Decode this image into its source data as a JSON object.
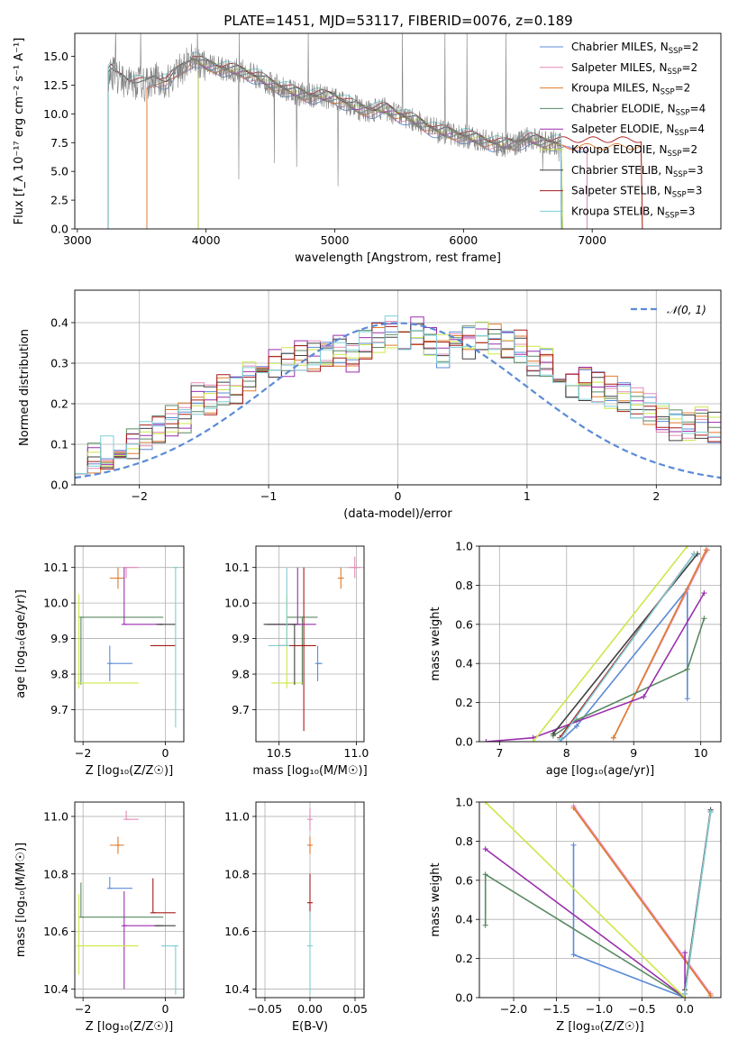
{
  "title": "PLATE=1451, MJD=53117, FIBERID=0076, z=0.189",
  "chart_data": [
    {
      "type": "line",
      "id": "spectrum",
      "xlabel": "wavelength [Angstrom, rest frame]",
      "xlim": [
        2980,
        8000
      ],
      "ylim": [
        0,
        17
      ],
      "xticks": [
        3000,
        4000,
        5000,
        6000,
        7000
      ],
      "yticks": [
        0.0,
        2.5,
        5.0,
        7.5,
        10.0,
        12.5,
        15.0
      ],
      "observed_color": "#808080",
      "continuum": {
        "x": [
          3240,
          3260,
          3300,
          3400,
          3540,
          3600,
          3700,
          3800,
          3900,
          4000,
          4100,
          4200,
          4300,
          4400,
          4500,
          4600,
          4700,
          4800,
          4900,
          5000,
          5100,
          5200,
          5300,
          5400,
          5500,
          5600,
          5700,
          5800,
          5900,
          6000,
          6100,
          6200,
          6300,
          6400,
          6500,
          6600,
          6700,
          6760
        ],
        "y": [
          13.5,
          13.8,
          13.2,
          12.8,
          12.5,
          13.0,
          12.8,
          13.8,
          14.8,
          14.2,
          14.0,
          13.8,
          13.6,
          13.2,
          12.6,
          12.2,
          11.8,
          11.6,
          11.5,
          11.4,
          10.9,
          10.4,
          10.3,
          10.4,
          9.9,
          9.5,
          9.0,
          8.5,
          8.3,
          8.1,
          7.8,
          7.5,
          7.3,
          7.4,
          7.8,
          7.6,
          7.5,
          7.4
        ]
      },
      "series": [
        {
          "name": "Chabrier MILES",
          "nssp": 2,
          "color": "#5b8bd6"
        },
        {
          "name": "Salpeter MILES",
          "nssp": 2,
          "color": "#e38bb8"
        },
        {
          "name": "Kroupa MILES",
          "nssp": 2,
          "color": "#e07b2c"
        },
        {
          "name": "Chabrier ELODIE",
          "nssp": 4,
          "color": "#5a8a63"
        },
        {
          "name": "Salpeter ELODIE",
          "nssp": 4,
          "color": "#9b2fae"
        },
        {
          "name": "Kroupa ELODIE",
          "nssp": 2,
          "color": "#cce84a"
        },
        {
          "name": "Chabrier STELIB",
          "nssp": 3,
          "color": "#404040"
        },
        {
          "name": "Salpeter STELIB",
          "nssp": 3,
          "color": "#a61b1b"
        },
        {
          "name": "Kroupa STELIB",
          "nssp": 3,
          "color": "#7ecfd6"
        }
      ],
      "model_ranges": [
        [
          3540,
          6960
        ],
        [
          3540,
          6960
        ],
        [
          3540,
          7390
        ],
        [
          3940,
          6770
        ],
        [
          3940,
          6770
        ],
        [
          3940,
          6770
        ],
        [
          3240,
          6760
        ],
        [
          3240,
          7390
        ],
        [
          3240,
          6760
        ]
      ],
      "legend_suffix": "N",
      "legend_sub": "SSP"
    },
    {
      "type": "line",
      "id": "residuals",
      "xlabel": "(data-model)/error",
      "ylabel": "Normed distribution",
      "xlim": [
        -2.5,
        2.5
      ],
      "ylim": [
        0,
        0.48
      ],
      "xticks": [
        -2,
        -1,
        0,
        1,
        2
      ],
      "yticks": [
        0.0,
        0.1,
        0.2,
        0.3,
        0.4
      ],
      "normal_label": "𝒩(0, 1)",
      "normal_color": "#5b8bd6",
      "hist_bins": {
        "start": -2.5,
        "width": 0.1
      },
      "envelope": [
        0.07,
        0.07,
        0.08,
        0.1,
        0.1,
        0.12,
        0.13,
        0.16,
        0.17,
        0.21,
        0.21,
        0.23,
        0.23,
        0.27,
        0.3,
        0.3,
        0.3,
        0.32,
        0.32,
        0.33,
        0.33,
        0.32,
        0.35,
        0.36,
        0.38,
        0.36,
        0.38,
        0.36,
        0.33,
        0.35,
        0.35,
        0.36,
        0.36,
        0.35,
        0.34,
        0.31,
        0.3,
        0.27,
        0.25,
        0.25,
        0.24,
        0.23,
        0.21,
        0.2,
        0.19,
        0.17,
        0.15,
        0.15,
        0.15,
        0.14,
        0.13,
        0.1,
        0.1,
        0.08,
        0.08,
        0.07,
        0.06,
        0.05,
        0.05,
        0.04,
        0.04,
        0.03,
        0.03,
        0.02,
        0.02,
        0.02
      ]
    },
    {
      "type": "scatter",
      "id": "age-vs-Z",
      "xlabel": "Z [log₁₀(Z/Z☉)]",
      "ylabel": "age  [log₁₀(age/yr)]",
      "xlim": [
        -2.2,
        0.45
      ],
      "ylim": [
        9.61,
        10.16
      ],
      "xticks": [
        -2,
        0
      ],
      "yticks": [
        9.7,
        9.8,
        9.9,
        10.0,
        10.1
      ],
      "points": [
        {
          "x": -1.35,
          "y": 9.83,
          "xerr": [
            0.0,
            0.55
          ],
          "yerr": [
            0.05,
            0.05
          ],
          "color": "#5b8bd6"
        },
        {
          "x": -0.95,
          "y": 10.1,
          "xerr": [
            0.0,
            0.3
          ],
          "yerr": [
            0.03,
            0.0
          ],
          "color": "#e38bb8"
        },
        {
          "x": -1.15,
          "y": 10.07,
          "xerr": [
            0.2,
            0.15
          ],
          "yerr": [
            0.03,
            0.03
          ],
          "color": "#e07b2c"
        },
        {
          "x": -2.05,
          "y": 9.96,
          "xerr": [
            0.0,
            2.0
          ],
          "yerr": [
            0.19,
            0.0
          ],
          "color": "#5a8a63"
        },
        {
          "x": -1.0,
          "y": 9.94,
          "xerr": [
            0.0,
            0.95
          ],
          "yerr": [
            0.0,
            0.16
          ],
          "color": "#9b2fae"
        },
        {
          "x": -2.1,
          "y": 9.775,
          "xerr": [
            0.0,
            1.45
          ],
          "yerr": [
            0.015,
            0.25
          ],
          "color": "#cce84a"
        },
        {
          "x": -0.15,
          "y": 9.94,
          "xerr": [
            0.0,
            0.4
          ],
          "yerr": [
            0.0,
            0.0
          ],
          "color": "#404040"
        },
        {
          "x": -0.3,
          "y": 9.88,
          "xerr": [
            0.0,
            0.55
          ],
          "yerr": [
            0.0,
            0.0
          ],
          "color": "#a61b1b"
        },
        {
          "x": 0.25,
          "y": 10.1,
          "xerr": [
            0.0,
            0.0
          ],
          "yerr": [
            0.45,
            0.0
          ],
          "color": "#7ecfd6"
        }
      ]
    },
    {
      "type": "scatter",
      "id": "age-vs-mass",
      "xlabel": "mass [log₁₀(M/M☉)]",
      "xlim": [
        10.35,
        11.05
      ],
      "ylim": [
        9.61,
        10.16
      ],
      "xticks": [
        10.5,
        11.0
      ],
      "yticks": [
        9.7,
        9.8,
        9.9,
        10.0,
        10.1
      ],
      "points": [
        {
          "x": 10.75,
          "y": 9.83,
          "xerr": [
            0.0,
            0.03
          ],
          "yerr": [
            0.05,
            0.05
          ],
          "color": "#5b8bd6"
        },
        {
          "x": 10.99,
          "y": 10.1,
          "xerr": [
            0.04,
            0.04
          ],
          "yerr": [
            0.03,
            0.03
          ],
          "color": "#e38bb8"
        },
        {
          "x": 10.9,
          "y": 10.07,
          "xerr": [
            0.02,
            0.02
          ],
          "yerr": [
            0.03,
            0.03
          ],
          "color": "#e07b2c"
        },
        {
          "x": 10.65,
          "y": 9.96,
          "xerr": [
            0.1,
            0.1
          ],
          "yerr": [
            0.19,
            0.0
          ],
          "color": "#5a8a63"
        },
        {
          "x": 10.62,
          "y": 9.94,
          "xerr": [
            0.2,
            0.12
          ],
          "yerr": [
            0.0,
            0.16
          ],
          "color": "#9b2fae"
        },
        {
          "x": 10.55,
          "y": 9.775,
          "xerr": [
            0.1,
            0.1
          ],
          "yerr": [
            0.015,
            0.25
          ],
          "color": "#cce84a"
        },
        {
          "x": 10.6,
          "y": 9.94,
          "xerr": [
            0.2,
            0.0
          ],
          "yerr": [
            0.17,
            0.0
          ],
          "color": "#404040"
        },
        {
          "x": 10.66,
          "y": 9.88,
          "xerr": [
            0.17,
            0.08
          ],
          "yerr": [
            0.24,
            0.22
          ],
          "color": "#a61b1b"
        },
        {
          "x": 10.55,
          "y": 9.88,
          "xerr": [
            0.12,
            0.0
          ],
          "yerr": [
            0.0,
            0.22
          ],
          "color": "#7ecfd6"
        }
      ]
    },
    {
      "type": "line",
      "id": "massweight-vs-age",
      "xlabel": "age  [log₁₀(age/yr)]",
      "ylabel": "mass weight",
      "xlim": [
        6.7,
        10.3
      ],
      "ylim": [
        0,
        1
      ],
      "xticks": [
        7,
        8,
        9,
        10
      ],
      "yticks": [
        0.0,
        0.2,
        0.4,
        0.6,
        0.8,
        1.0
      ],
      "series": [
        {
          "color": "#5b8bd6",
          "x": [
            7.9,
            8.15,
            9.8,
            9.8
          ],
          "y": [
            0.0,
            0.08,
            0.78,
            0.22
          ]
        },
        {
          "color": "#e38bb8",
          "x": [
            8.7,
            10.1
          ],
          "y": [
            0.02,
            0.98
          ]
        },
        {
          "color": "#e07b2c",
          "x": [
            8.7,
            10.08
          ],
          "y": [
            0.02,
            0.98
          ]
        },
        {
          "color": "#5a8a63",
          "x": [
            7.8,
            8.15,
            9.8,
            10.05
          ],
          "y": [
            0.03,
            0.11,
            0.37,
            0.63
          ]
        },
        {
          "color": "#9b2fae",
          "x": [
            6.8,
            7.5,
            9.15,
            10.05
          ],
          "y": [
            0.0,
            0.02,
            0.23,
            0.76
          ]
        },
        {
          "color": "#cce84a",
          "x": [
            7.5,
            9.8
          ],
          "y": [
            0.0,
            1.0
          ]
        },
        {
          "color": "#404040",
          "x": [
            7.8,
            9.95
          ],
          "y": [
            0.04,
            0.96
          ]
        },
        {
          "color": "#a61b1b",
          "x": [
            7.9,
            9.9
          ],
          "y": [
            0.02,
            0.96
          ]
        },
        {
          "color": "#7ecfd6",
          "x": [
            7.9,
            9.9
          ],
          "y": [
            0.01,
            0.96
          ]
        }
      ]
    },
    {
      "type": "scatter",
      "id": "mass-vs-Z",
      "xlabel": "Z [log₁₀(Z/Z☉)]",
      "ylabel": "mass [log₁₀(M/M☉)]",
      "xlim": [
        -2.2,
        0.45
      ],
      "ylim": [
        10.37,
        11.05
      ],
      "xticks": [
        -2,
        0
      ],
      "yticks": [
        10.4,
        10.6,
        10.8,
        11.0
      ],
      "points": [
        {
          "x": -1.35,
          "y": 10.75,
          "xerr": [
            0.0,
            0.55
          ],
          "yerr": [
            0.0,
            0.04
          ],
          "color": "#5b8bd6"
        },
        {
          "x": -0.95,
          "y": 10.99,
          "xerr": [
            0.0,
            0.3
          ],
          "yerr": [
            0.0,
            0.03
          ],
          "color": "#e38bb8"
        },
        {
          "x": -1.15,
          "y": 10.9,
          "xerr": [
            0.2,
            0.15
          ],
          "yerr": [
            0.03,
            0.03
          ],
          "color": "#e07b2c"
        },
        {
          "x": -2.05,
          "y": 10.65,
          "xerr": [
            0.0,
            2.0
          ],
          "yerr": [
            0.0,
            0.12
          ],
          "color": "#5a8a63"
        },
        {
          "x": -1.0,
          "y": 10.62,
          "xerr": [
            0.0,
            0.95
          ],
          "yerr": [
            0.22,
            0.12
          ],
          "color": "#9b2fae"
        },
        {
          "x": -2.1,
          "y": 10.55,
          "xerr": [
            0.0,
            1.45
          ],
          "yerr": [
            0.1,
            0.18
          ],
          "color": "#cce84a"
        },
        {
          "x": -0.2,
          "y": 10.62,
          "xerr": [
            0.0,
            0.45
          ],
          "yerr": [
            0.0,
            0.0
          ],
          "color": "#404040"
        },
        {
          "x": -0.3,
          "y": 10.665,
          "xerr": [
            0.0,
            0.55
          ],
          "yerr": [
            0.0,
            0.12
          ],
          "color": "#a61b1b"
        },
        {
          "x": 0.25,
          "y": 10.55,
          "xerr": [
            0.35,
            0.0
          ],
          "yerr": [
            0.17,
            0.0
          ],
          "color": "#7ecfd6"
        }
      ]
    },
    {
      "type": "scatter",
      "id": "mass-vs-ebv",
      "xlabel": "E(B-V)",
      "xlim": [
        -0.06,
        0.06
      ],
      "ylim": [
        10.37,
        11.05
      ],
      "xticks": [
        -0.05,
        0.0,
        0.05
      ],
      "yticks": [
        10.4,
        10.6,
        10.8,
        11.0
      ],
      "points": [
        {
          "x": 0.0,
          "y": 10.99,
          "xerr": [
            0,
            0
          ],
          "yerr": [
            0.04,
            0.04
          ],
          "color": "#e38bb8"
        },
        {
          "x": 0.0,
          "y": 10.9,
          "xerr": [
            0,
            0
          ],
          "yerr": [
            0.03,
            0.03
          ],
          "color": "#e07b2c"
        },
        {
          "x": 0.0,
          "y": 10.7,
          "xerr": [
            0,
            0
          ],
          "yerr": [
            0.06,
            0.1
          ],
          "color": "#a61b1b"
        },
        {
          "x": 0.0,
          "y": 10.55,
          "xerr": [
            0,
            0
          ],
          "yerr": [
            0.17,
            0.12
          ],
          "color": "#7ecfd6"
        }
      ]
    },
    {
      "type": "line",
      "id": "massweight-vs-Z",
      "xlabel": "Z [log₁₀(Z/Z☉)]",
      "ylabel": "mass weight",
      "xlim": [
        -2.4,
        0.42
      ],
      "ylim": [
        0,
        1
      ],
      "xticks": [
        -2.0,
        -1.5,
        -1.0,
        -0.5,
        0.0
      ],
      "yticks": [
        0.0,
        0.2,
        0.4,
        0.6,
        0.8,
        1.0
      ],
      "series": [
        {
          "color": "#5b8bd6",
          "x": [
            -1.3,
            -1.3,
            0.0
          ],
          "y": [
            0.78,
            0.22,
            0.0
          ]
        },
        {
          "color": "#e38bb8",
          "x": [
            -1.3,
            0.3
          ],
          "y": [
            0.98,
            0.02
          ]
        },
        {
          "color": "#e07b2c",
          "x": [
            -1.3,
            0.3
          ],
          "y": [
            0.97,
            0.01
          ]
        },
        {
          "color": "#5a8a63",
          "x": [
            -2.33,
            -2.33,
            0.0,
            0.0
          ],
          "y": [
            0.37,
            0.63,
            0.0,
            0.0
          ]
        },
        {
          "color": "#9b2fae",
          "x": [
            -2.33,
            0.0,
            0.0
          ],
          "y": [
            0.76,
            0.0,
            0.23
          ]
        },
        {
          "color": "#cce84a",
          "x": [
            -2.33,
            0.0
          ],
          "y": [
            1.0,
            0.0
          ]
        },
        {
          "color": "#404040",
          "x": [
            0.0,
            0.3
          ],
          "y": [
            0.04,
            0.96
          ]
        },
        {
          "color": "#a61b1b",
          "x": [
            0.0,
            0.3
          ],
          "y": [
            0.02,
            0.95
          ]
        },
        {
          "color": "#7ecfd6",
          "x": [
            0.0,
            0.3
          ],
          "y": [
            0.02,
            0.95
          ]
        }
      ]
    }
  ]
}
